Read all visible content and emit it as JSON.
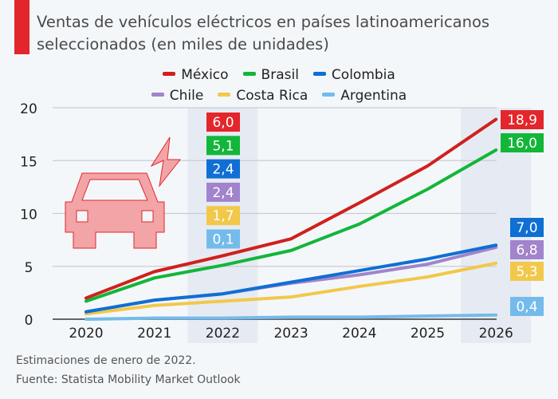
{
  "title": "Ventas de vehículos eléctricos en países latinoamericanos seleccionados (en miles de unidades)",
  "accent_color": "#e3262b",
  "footer": {
    "note": "Estimaciones de enero de 2022.",
    "source": "Fuente: Statista Mobility Market Outlook"
  },
  "icons": [
    "electric-car-icon",
    "lightning-bolt-icon"
  ],
  "chart_data": {
    "type": "line",
    "title": "Ventas de vehículos eléctricos en países latinoamericanos seleccionados (en miles de unidades)",
    "xlabel": "",
    "ylabel": "",
    "x": [
      "2020",
      "2021",
      "2022",
      "2023",
      "2024",
      "2025",
      "2026"
    ],
    "ylim": [
      0,
      20
    ],
    "yticks": [
      0,
      5,
      10,
      15,
      20
    ],
    "grid": true,
    "legend_position": "top-center",
    "highlighted_categories": [
      "2022",
      "2026"
    ],
    "series": [
      {
        "name": "México",
        "color": "#d0211d",
        "label_color": "#e3262b",
        "values": [
          2.0,
          4.5,
          6.0,
          7.6,
          11.0,
          14.5,
          18.9
        ]
      },
      {
        "name": "Brasil",
        "color": "#12b639",
        "label_color": "#12b639",
        "values": [
          1.7,
          3.9,
          5.1,
          6.5,
          9.0,
          12.3,
          16.0
        ]
      },
      {
        "name": "Colombia",
        "color": "#0f6fd4",
        "label_color": "#0f6fd4",
        "values": [
          0.7,
          1.8,
          2.4,
          3.5,
          4.6,
          5.7,
          7.0
        ]
      },
      {
        "name": "Chile",
        "color": "#a184cc",
        "label_color": "#a184cc",
        "values": [
          0.7,
          1.8,
          2.4,
          3.4,
          4.2,
          5.2,
          6.8
        ]
      },
      {
        "name": "Costa Rica",
        "color": "#f2c84b",
        "label_color": "#f2c84b",
        "values": [
          0.5,
          1.3,
          1.7,
          2.1,
          3.1,
          4.0,
          5.3
        ]
      },
      {
        "name": "Argentina",
        "color": "#74bbeb",
        "label_color": "#74bbeb",
        "values": [
          0.0,
          0.1,
          0.1,
          0.2,
          0.2,
          0.3,
          0.4
        ]
      }
    ],
    "data_labels": {
      "2022": [
        "6,0",
        "5,1",
        "2,4",
        "2,4",
        "1,7",
        "0,1"
      ],
      "2026": [
        "18,9",
        "16,0",
        "7,0",
        "6,8",
        "5,3",
        "0,4"
      ]
    }
  }
}
